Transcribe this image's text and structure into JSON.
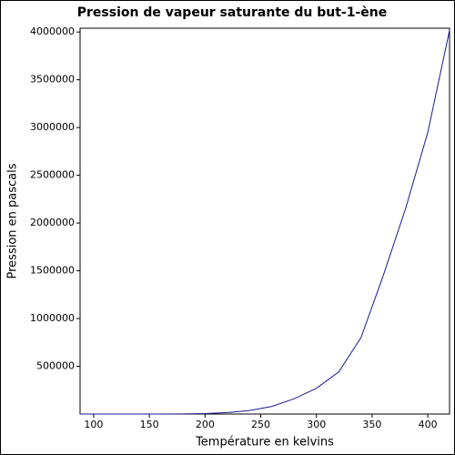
{
  "chart_data": {
    "type": "line",
    "title": "Pression de vapeur saturante du but-1-ène",
    "x_label": "Température en kelvins",
    "y_label": "Pression en pascals",
    "x": [
      87.8,
      100,
      120,
      140,
      160,
      180,
      200,
      220,
      240,
      260,
      280,
      300,
      320,
      340,
      360,
      380,
      400,
      419.5
    ],
    "series": [
      {
        "name": "but-1-ène",
        "color": "#1a1a8c",
        "values": [
          0,
          0,
          2,
          30,
          250,
          1300,
          5000,
          15000,
          37000,
          80000,
          160000,
          270000,
          440000,
          800000,
          1450000,
          2150000,
          2950000,
          4020000
        ]
      }
    ],
    "xlim": [
      87.8,
      419.5
    ],
    "ylim": [
      0,
      4040000
    ],
    "xticks": [
      100,
      150,
      200,
      250,
      300,
      350,
      400
    ],
    "yticks": [
      500000,
      1000000,
      1500000,
      2000000,
      2500000,
      3000000,
      3500000,
      4000000
    ]
  }
}
